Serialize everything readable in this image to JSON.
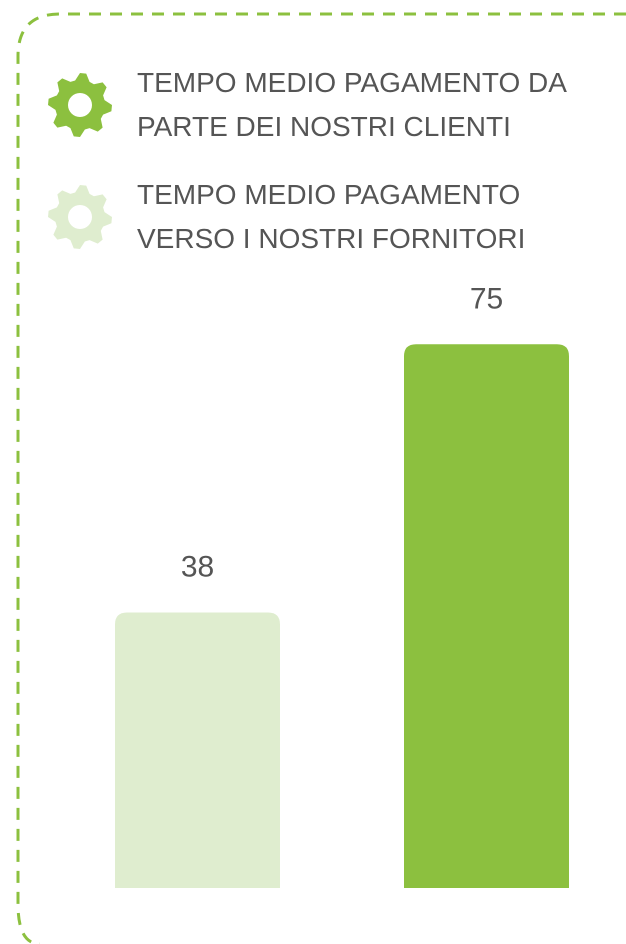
{
  "chart_data": {
    "type": "bar",
    "series": [
      {
        "name": "TEMPO MEDIO PAGAMENTO DA PARTE DEI NOSTRI CLIENTI",
        "color": "#8cc03f",
        "values": [
          75
        ]
      },
      {
        "name": "TEMPO MEDIO PAGAMENTO VERSO I NOSTRI FORNITORI",
        "color": "#dfedcf",
        "values": [
          38
        ]
      }
    ]
  }
}
